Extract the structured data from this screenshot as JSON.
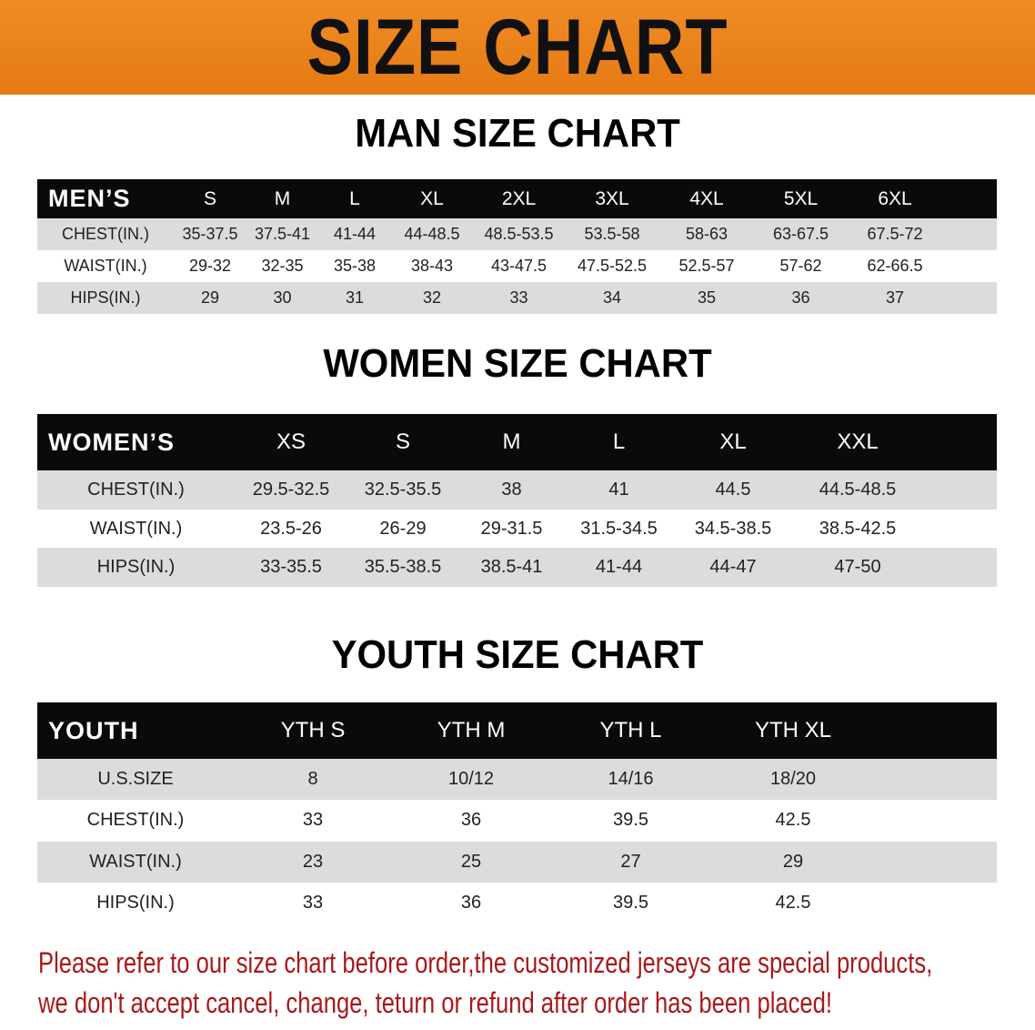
{
  "banner_title": "SIZE CHART",
  "men": {
    "title": "MAN SIZE CHART",
    "header": [
      "MEN’S",
      "S",
      "M",
      "L",
      "XL",
      "2XL",
      "3XL",
      "4XL",
      "5XL",
      "6XL"
    ],
    "rows": [
      [
        "CHEST(IN.)",
        "35-37.5",
        "37.5-41",
        "41-44",
        "44-48.5",
        "48.5-53.5",
        "53.5-58",
        "58-63",
        "63-67.5",
        "67.5-72"
      ],
      [
        "WAIST(IN.)",
        "29-32",
        "32-35",
        "35-38",
        "38-43",
        "43-47.5",
        "47.5-52.5",
        "52.5-57",
        "57-62",
        "62-66.5"
      ],
      [
        "HIPS(IN.)",
        "29",
        "30",
        "31",
        "32",
        "33",
        "34",
        "35",
        "36",
        "37"
      ]
    ]
  },
  "women": {
    "title": "WOMEN SIZE CHART",
    "header": [
      "WOMEN’S",
      "XS",
      "S",
      "M",
      "L",
      "XL",
      "XXL"
    ],
    "rows": [
      [
        "CHEST(IN.)",
        "29.5-32.5",
        "32.5-35.5",
        "38",
        "41",
        "44.5",
        "44.5-48.5"
      ],
      [
        "WAIST(IN.)",
        "23.5-26",
        "26-29",
        "29-31.5",
        "31.5-34.5",
        "34.5-38.5",
        "38.5-42.5"
      ],
      [
        "HIPS(IN.)",
        "33-35.5",
        "35.5-38.5",
        "38.5-41",
        "41-44",
        "44-47",
        "47-50"
      ]
    ]
  },
  "youth": {
    "title": "YOUTH SIZE CHART",
    "header": [
      "YOUTH",
      "YTH S",
      "YTH M",
      "YTH L",
      "YTH XL"
    ],
    "rows": [
      [
        "U.S.SIZE",
        "8",
        "10/12",
        "14/16",
        "18/20"
      ],
      [
        "CHEST(IN.)",
        "33",
        "36",
        "39.5",
        "42.5"
      ],
      [
        "WAIST(IN.)",
        "23",
        "25",
        "27",
        "29"
      ],
      [
        "HIPS(IN.)",
        "33",
        "36",
        "39.5",
        "42.5"
      ]
    ]
  },
  "note": {
    "line1": "Please refer to our size chart before order,the customized jerseys are special products,",
    "line2": "we don't accept cancel, change, teturn or refund after order has been placed!"
  },
  "colors": {
    "banner": "#e98118",
    "header_row": "#0a0a0a",
    "stripe": "#dcdcdc",
    "note": "#a8191b"
  }
}
